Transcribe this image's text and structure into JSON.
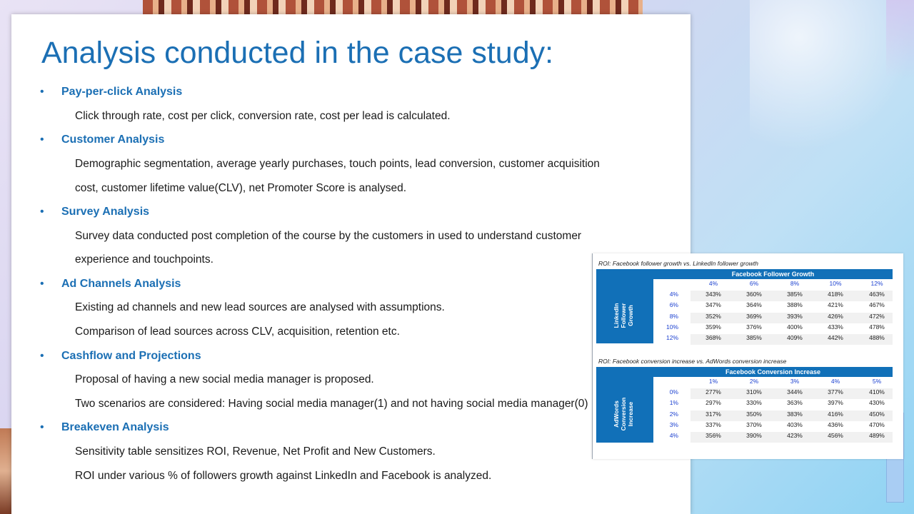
{
  "title": "Analysis conducted in the case study:",
  "sections": [
    {
      "heading": "Pay-per-click Analysis",
      "lines": [
        "Click through rate, cost per click, conversion rate, cost per lead is calculated."
      ]
    },
    {
      "heading": "Customer Analysis",
      "lines": [
        "Demographic segmentation, average yearly purchases, touch points, lead conversion,   customer acquisition",
        "cost, customer  lifetime value(CLV), net Promoter Score  is analysed."
      ]
    },
    {
      "heading": "Survey Analysis",
      "lines": [
        "Survey data conducted post completion of the course by the customers in used to understand customer",
        "experience and touchpoints."
      ]
    },
    {
      "heading": "Ad Channels Analysis",
      "lines": [
        "Existing ad channels and new lead sources are analysed with assumptions.",
        "Comparison of lead sources across CLV, acquisition, retention etc."
      ]
    },
    {
      "heading": "Cashflow and Projections",
      "lines": [
        "Proposal of having  a new social media manager is proposed.",
        "Two scenarios are considered: Having social media manager(1) and not having social media manager(0)"
      ]
    },
    {
      "heading": "Breakeven Analysis",
      "lines": [
        "Sensitivity table sensitizes ROI, Revenue, Net Profit and New Customers.",
        "ROI under various % of followers growth against LinkedIn and Facebook is analyzed."
      ]
    }
  ],
  "table1": {
    "caption": "ROI: Facebook follower growth vs. LinkedIn follower growth",
    "col_header": "Facebook Follower Growth",
    "row_header": "LinkedIn\nFollower\nGrowth",
    "columns": [
      "4%",
      "6%",
      "8%",
      "10%",
      "12%"
    ],
    "rows": [
      "4%",
      "6%",
      "8%",
      "10%",
      "12%"
    ],
    "values": [
      [
        "343%",
        "360%",
        "385%",
        "418%",
        "463%"
      ],
      [
        "347%",
        "364%",
        "388%",
        "421%",
        "467%"
      ],
      [
        "352%",
        "369%",
        "393%",
        "426%",
        "472%"
      ],
      [
        "359%",
        "376%",
        "400%",
        "433%",
        "478%"
      ],
      [
        "368%",
        "385%",
        "409%",
        "442%",
        "488%"
      ]
    ]
  },
  "table2": {
    "caption": "ROI: Facebook conversion increase vs. AdWords conversion increase",
    "col_header": "Facebook Conversion Increase",
    "row_header": "AdWords\nConversion\nIncrease",
    "columns": [
      "1%",
      "2%",
      "3%",
      "4%",
      "5%"
    ],
    "rows": [
      "0%",
      "1%",
      "2%",
      "3%",
      "4%"
    ],
    "values": [
      [
        "277%",
        "310%",
        "344%",
        "377%",
        "410%"
      ],
      [
        "297%",
        "330%",
        "363%",
        "397%",
        "430%"
      ],
      [
        "317%",
        "350%",
        "383%",
        "416%",
        "450%"
      ],
      [
        "337%",
        "370%",
        "403%",
        "436%",
        "470%"
      ],
      [
        "356%",
        "390%",
        "423%",
        "456%",
        "489%"
      ]
    ]
  },
  "colors": {
    "accent": "#1b6fb4",
    "table_header": "#1170b8",
    "table_axis_values": "#1a3fd0"
  }
}
